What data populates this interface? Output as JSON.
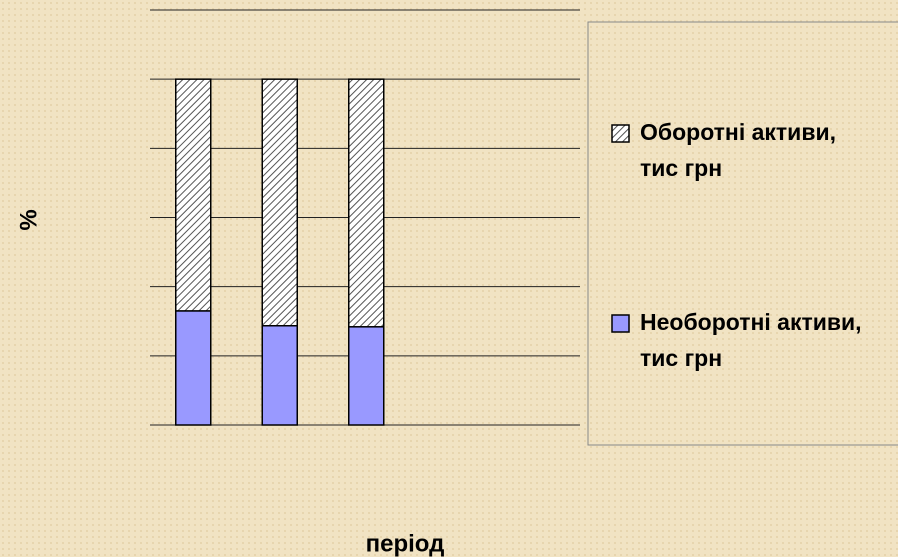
{
  "chart_data": {
    "type": "stacked_bar",
    "y_label": "%",
    "x_label": "період",
    "categories": [
      null,
      null,
      null
    ],
    "series": [
      {
        "name": "Необоротні активи, тис грн",
        "color": "#9999ff",
        "values": [
          33.0,
          28.7,
          28.4
        ]
      },
      {
        "name": "Оборотні активи, тис грн",
        "color": "#ffffff",
        "hatch": true,
        "values": [
          67.0,
          71.3,
          71.6
        ]
      }
    ],
    "ylim": [
      0,
      120
    ],
    "yticks": [
      0,
      20,
      40,
      60,
      80,
      100,
      120
    ],
    "grid": true,
    "legend": "right"
  }
}
